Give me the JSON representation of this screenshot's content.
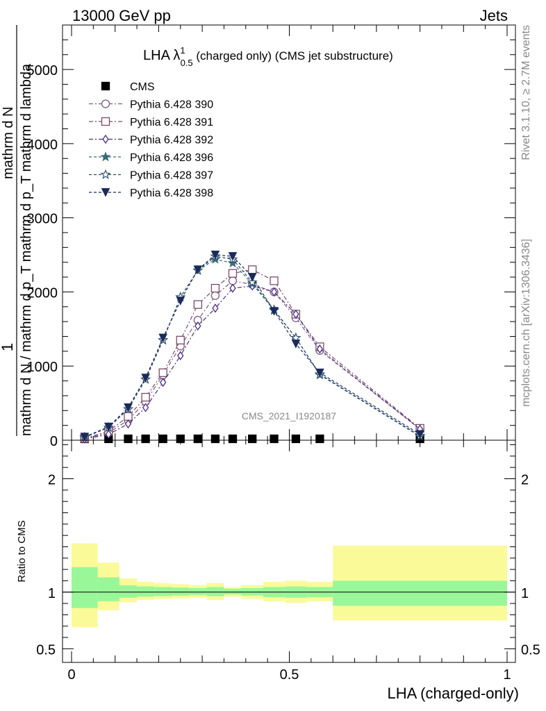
{
  "header": {
    "left": "13000 GeV pp",
    "right": "Jets"
  },
  "side_labels": {
    "rivet": "Rivet 3.1.10, ≥ 2.7M events",
    "mcplots": "mcplots.cern.ch [arXiv:1306.3436]"
  },
  "watermark": "CMS_2021_I1920187",
  "chart_data": [
    {
      "type": "line",
      "title_main": "LHA λ",
      "title_sup": "1",
      "title_sub": "0.5",
      "title_rest": " (charged only) (CMS jet substructure)",
      "ylabel_top": "1",
      "ylabel_bottom": "mathrm d N / mathrm d p_T mathrm d p_T mathrm d lambda",
      "ylabel_sub": "T",
      "ylabel_num": "mathrm d N",
      "xlim": [
        0,
        1
      ],
      "ylim": [
        0,
        5600
      ],
      "yticks": [
        0,
        1000,
        2000,
        3000,
        4000,
        5000
      ],
      "ytick_labels": [
        "0",
        "1000",
        "2000",
        "3000",
        "4000",
        "5000"
      ],
      "x": [
        0.03,
        0.085,
        0.13,
        0.17,
        0.21,
        0.25,
        0.29,
        0.33,
        0.37,
        0.415,
        0.465,
        0.515,
        0.57,
        0.8
      ],
      "series": [
        {
          "name": "CMS",
          "color": "#000000",
          "marker": "square-filled",
          "dash": "none",
          "values": [
            5,
            10,
            10,
            10,
            10,
            10,
            10,
            10,
            10,
            10,
            10,
            10,
            10,
            5
          ]
        },
        {
          "name": "Pythia 6.428 390",
          "color": "#7a5a84",
          "marker": "circle-open",
          "dash": "6,3,2,3",
          "values": [
            20,
            100,
            270,
            520,
            880,
            1270,
            1620,
            1950,
            2150,
            2100,
            2000,
            1650,
            1210,
            150
          ]
        },
        {
          "name": "Pythia 6.428 391",
          "color": "#7a4a6a",
          "marker": "square-open",
          "dash": "6,3,2,3",
          "values": [
            25,
            120,
            320,
            580,
            910,
            1350,
            1830,
            2050,
            2250,
            2300,
            2150,
            1700,
            1260,
            160
          ]
        },
        {
          "name": "Pythia 6.428 392",
          "color": "#4a2a84",
          "marker": "diamond-open",
          "dash": "6,3,2,3",
          "values": [
            15,
            80,
            220,
            440,
            780,
            1140,
            1540,
            1780,
            2050,
            2080,
            2000,
            1700,
            1230,
            150
          ]
        },
        {
          "name": "Pythia 6.428 396",
          "color": "#3a6a7a",
          "marker": "star-filled",
          "dash": "4,3",
          "values": [
            40,
            170,
            420,
            820,
            1350,
            1930,
            2290,
            2440,
            2390,
            2110,
            1750,
            1380,
            880,
            50
          ]
        },
        {
          "name": "Pythia 6.428 397",
          "color": "#2a4a6a",
          "marker": "star-open",
          "dash": "4,3",
          "values": [
            40,
            170,
            420,
            820,
            1350,
            1930,
            2290,
            2480,
            2440,
            2130,
            1760,
            1380,
            890,
            60
          ]
        },
        {
          "name": "Pythia 6.428 398",
          "color": "#1a2a5a",
          "marker": "triangle-down-filled",
          "dash": "4,3",
          "values": [
            45,
            180,
            440,
            840,
            1380,
            1880,
            2300,
            2500,
            2480,
            2200,
            1740,
            1300,
            910,
            80
          ]
        }
      ]
    },
    {
      "type": "area",
      "ylabel": "Ratio to CMS",
      "xlabel": "LHA (charged-only)",
      "xlim": [
        0,
        1
      ],
      "ylim": [
        0.38,
        2.34
      ],
      "xticks": [
        0,
        0.5,
        1
      ],
      "xtick_labels": [
        "0",
        "0.5",
        "1"
      ],
      "yticks": [
        0.5,
        1,
        2
      ],
      "ytick_labels": [
        "0.5",
        "1",
        "2"
      ],
      "reference_line": 1,
      "bands": {
        "edges": [
          0,
          0.06,
          0.11,
          0.15,
          0.19,
          0.23,
          0.27,
          0.31,
          0.35,
          0.39,
          0.44,
          0.49,
          0.54,
          0.6,
          1.0
        ],
        "inner": [
          [
            0.86,
            1.22
          ],
          [
            0.92,
            1.13
          ],
          [
            0.95,
            1.06
          ],
          [
            0.96,
            1.05
          ],
          [
            0.965,
            1.045
          ],
          [
            0.97,
            1.04
          ],
          [
            0.975,
            1.035
          ],
          [
            0.965,
            1.045
          ],
          [
            0.98,
            1.03
          ],
          [
            0.97,
            1.035
          ],
          [
            0.955,
            1.045
          ],
          [
            0.95,
            1.05
          ],
          [
            0.955,
            1.045
          ],
          [
            0.88,
            1.1
          ]
        ],
        "outer": [
          [
            0.69,
            1.43
          ],
          [
            0.84,
            1.26
          ],
          [
            0.91,
            1.12
          ],
          [
            0.93,
            1.09
          ],
          [
            0.94,
            1.08
          ],
          [
            0.945,
            1.07
          ],
          [
            0.95,
            1.06
          ],
          [
            0.93,
            1.08
          ],
          [
            0.96,
            1.045
          ],
          [
            0.94,
            1.06
          ],
          [
            0.92,
            1.09
          ],
          [
            0.905,
            1.1
          ],
          [
            0.92,
            1.09
          ],
          [
            0.75,
            1.41
          ]
        ],
        "inner_color": "#99f799",
        "outer_color": "#fafa99"
      }
    }
  ]
}
